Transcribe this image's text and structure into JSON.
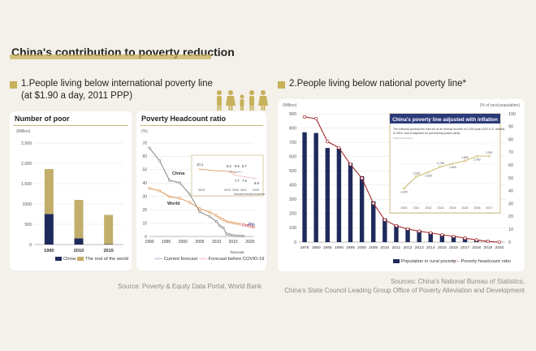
{
  "page": {
    "title": "China's contribution to poverty reduction",
    "section1": {
      "line1": "1.People living below international poverty line",
      "line2": "(at $1.90 a day, 2011 PPP)"
    },
    "section2": {
      "title": "2.People living below national poverty line*"
    },
    "source_left": "Source: Poverty & Equity Data Portal, World Bank",
    "source_right_1": "Sources: China's National Bureau of Statistics,",
    "source_right_2": "China's State Council Leading Group Office of Poverty Alleviation and Development"
  },
  "colors": {
    "china": "#1f2a5c",
    "rest": "#c2ae6a",
    "red": "#a52b2b",
    "current": "#3a4a9a",
    "covid": "#e0525b",
    "gold": "#c7b15a"
  },
  "chart_data": [
    {
      "type": "bar",
      "title": "Number of poor",
      "ylabel": "(Million)",
      "ylim": [
        0,
        2500
      ],
      "yticks": [
        0,
        500,
        1000,
        1500,
        2000,
        2500
      ],
      "yticklabels": [
        "0",
        "500",
        "1000",
        "1,500",
        "2,000",
        "2,500"
      ],
      "categories": [
        "1990",
        "2010",
        "2015"
      ],
      "series": [
        {
          "name": "China",
          "values": [
            750,
            150,
            10
          ]
        },
        {
          "name": "The rest of the world",
          "values": [
            1110,
            950,
            720
          ]
        }
      ]
    },
    {
      "type": "line",
      "title": "Poverty Headcount ratio",
      "ylabel": "(%)",
      "ylim": [
        0,
        70
      ],
      "yticks": [
        0,
        10,
        20,
        30,
        40,
        50,
        60,
        70
      ],
      "xticks": [
        "1990",
        "1995",
        "2000",
        "2005",
        "2010",
        "2015",
        "2020"
      ],
      "xnote": "forecast",
      "labels": {
        "china": "China",
        "world": "World"
      },
      "series": [
        {
          "name": "China",
          "x": [
            1990,
            1993,
            1996,
            1999,
            2002,
            2005,
            2008,
            2010,
            2011,
            2012,
            2013,
            2014,
            2015,
            2016,
            2017,
            2018
          ],
          "y": [
            66.3,
            56.8,
            42.0,
            40.2,
            31.7,
            18.5,
            14.8,
            11.2,
            7.9,
            6.5,
            1.9,
            1.4,
            0.7,
            0.5,
            0.4,
            0.3
          ]
        },
        {
          "name": "World",
          "x": [
            1990,
            1993,
            1996,
            1999,
            2002,
            2005,
            2008,
            2010,
            2011,
            2012,
            2013,
            2014,
            2015,
            2016,
            2017
          ],
          "y": [
            36.0,
            34.2,
            29.8,
            28.6,
            25.5,
            20.8,
            18.1,
            15.7,
            13.8,
            12.8,
            11.2,
            10.7,
            10.1,
            9.7,
            9.2
          ]
        },
        {
          "name": "Current forecast",
          "x": [
            2018,
            2019,
            2020,
            2021
          ],
          "y": [
            8.6,
            8.2,
            9.5,
            8.7
          ]
        },
        {
          "name": "Forecast before COVID-19",
          "x": [
            2018,
            2019,
            2020,
            2021
          ],
          "y": [
            8.6,
            8.2,
            7.7,
            6.9
          ]
        }
      ],
      "legend": [
        "Current forecast",
        "Forecast before COVID-19"
      ],
      "inset": {
        "labels": [
          "10.1",
          "8.2",
          "9.5",
          "8.7",
          "7.7",
          "7.5",
          "6.9"
        ],
        "xticks": [
          "2015",
          "2019",
          "2020",
          "2021",
          "2030"
        ],
        "note": "forecast forecast projection"
      }
    },
    {
      "type": "bar+line",
      "left_ylabel": "(Million)",
      "right_ylabel": "(% of rural population)",
      "left_ylim": [
        0,
        900
      ],
      "right_ylim": [
        0,
        100
      ],
      "left_yticks": [
        0,
        100,
        200,
        300,
        400,
        500,
        600,
        700,
        800,
        900
      ],
      "right_yticks": [
        0,
        10,
        20,
        30,
        40,
        50,
        60,
        70,
        80,
        90,
        100
      ],
      "categories": [
        "1978",
        "1980",
        "1985",
        "1990",
        "1995",
        "2000",
        "2005",
        "2010",
        "2011",
        "2012",
        "2013",
        "2014",
        "2015",
        "2016",
        "2017",
        "2018",
        "2019",
        "2020"
      ],
      "series": [
        {
          "name": "Population in rural poverty",
          "type": "bar",
          "values": [
            770,
            765,
            660,
            658,
            555,
            462,
            286,
            166,
            122,
            99,
            82,
            70,
            56,
            43,
            30,
            17,
            6,
            0
          ]
        },
        {
          "name": "Poverty headcount ratio",
          "type": "line",
          "values": [
            97.5,
            96.2,
            78.3,
            73.5,
            60.5,
            49.8,
            30.2,
            17.2,
            12.7,
            10.2,
            8.5,
            7.2,
            5.7,
            4.5,
            3.1,
            1.7,
            0.6,
            0
          ]
        }
      ],
      "legend": [
        "Population in rural poverty",
        "Poverty headcount ratio"
      ],
      "inset": {
        "title": "China's poverty line adjusted with inflation",
        "desc_1": "The national poverty line was set at an annual income of 2,300 yuan (323 U.S. dollars)",
        "desc_2": "in 2010, and is adjusted for purchasing power parity.",
        "unit": "(Yuan per annum)",
        "categories": [
          "2010",
          "2011",
          "2012",
          "2013",
          "2014",
          "2015",
          "2016",
          "2017"
        ],
        "values": [
          2300,
          2536,
          2625,
          2736,
          2800,
          2855,
          2952,
          2952
        ],
        "labels": [
          "2,300",
          "2,536",
          "2,625",
          "2,736",
          "2,800",
          "2,855",
          "2,952",
          "2,952"
        ]
      }
    }
  ]
}
